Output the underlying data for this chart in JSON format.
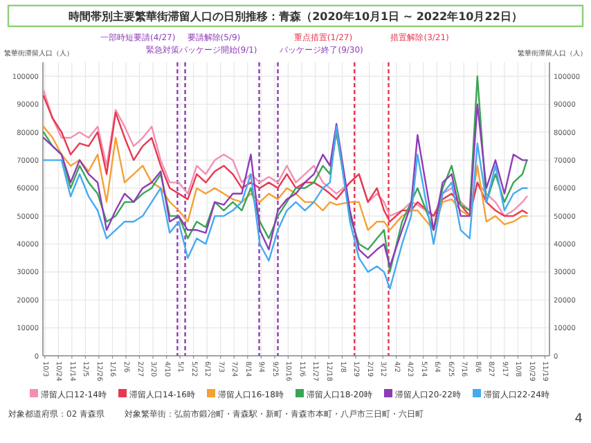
{
  "chart_data": {
    "type": "line",
    "title": "時間帯別主要繁華街滞留人口の日別推移：青森（2020年10月1日 ~ 2022年10月22日）",
    "ylabel": "繁華街滞留人口（人）",
    "y2label": "繁華街滞留人口（人）",
    "x": [
      "2020-10-01",
      "2020-10-15",
      "2020-10-29",
      "2020-11-12",
      "2020-11-26",
      "2020-12-10",
      "2020-12-24",
      "2021-01-07",
      "2021-01-21",
      "2021-02-04",
      "2021-02-18",
      "2021-03-04",
      "2021-03-18",
      "2021-04-01",
      "2021-04-15",
      "2021-04-29",
      "2021-05-13",
      "2021-05-27",
      "2021-06-10",
      "2021-06-24",
      "2021-07-08",
      "2021-07-22",
      "2021-08-05",
      "2021-08-19",
      "2021-09-02",
      "2021-09-16",
      "2021-09-30",
      "2021-10-14",
      "2021-10-28",
      "2021-11-11",
      "2021-11-25",
      "2021-12-09",
      "2021-12-20",
      "2021-12-30",
      "2022-01-20",
      "2022-02-03",
      "2022-02-17",
      "2022-03-03",
      "2022-03-14",
      "2022-03-23",
      "2022-04-11",
      "2022-04-25",
      "2022-05-05",
      "2022-05-30",
      "2022-06-13",
      "2022-06-27",
      "2022-07-11",
      "2022-07-25",
      "2022-08-06",
      "2022-08-20",
      "2022-09-03",
      "2022-09-17",
      "2022-10-01",
      "2022-10-15",
      "2022-10-22"
    ],
    "series": [
      {
        "name": "滞留人口12-14時",
        "color": "#f48fb1",
        "values": [
          95000,
          85000,
          78000,
          78000,
          80000,
          78000,
          82000,
          68000,
          88000,
          82000,
          75000,
          78000,
          82000,
          70000,
          62000,
          62000,
          58000,
          68000,
          65000,
          70000,
          72000,
          70000,
          62000,
          65000,
          62000,
          64000,
          62000,
          68000,
          62000,
          65000,
          68000,
          62000,
          60000,
          58000,
          62000,
          65000,
          55000,
          58000,
          55000,
          50000,
          52000,
          55000,
          54000,
          50000,
          58000,
          60000,
          55000,
          52000,
          62000,
          58000,
          55000,
          50000,
          52000,
          55000,
          57000
        ]
      },
      {
        "name": "滞留人口14-16時",
        "color": "#e8384f",
        "values": [
          93000,
          85000,
          80000,
          72000,
          76000,
          75000,
          80000,
          65000,
          87000,
          78000,
          70000,
          75000,
          78000,
          68000,
          60000,
          58000,
          56000,
          65000,
          62000,
          66000,
          68000,
          65000,
          60000,
          62000,
          60000,
          62000,
          60000,
          65000,
          60000,
          62000,
          62000,
          60000,
          58000,
          56000,
          62000,
          65000,
          55000,
          60000,
          52000,
          48000,
          52000,
          52000,
          55000,
          50000,
          56000,
          58000,
          54000,
          50000,
          62000,
          55000,
          52000,
          50000,
          50000,
          52000,
          51000
        ]
      },
      {
        "name": "滞留人口16-18時",
        "color": "#f5a033",
        "values": [
          82000,
          78000,
          72000,
          68000,
          70000,
          66000,
          72000,
          55000,
          78000,
          62000,
          65000,
          68000,
          62000,
          60000,
          55000,
          52000,
          48000,
          60000,
          58000,
          60000,
          58000,
          56000,
          55000,
          58000,
          55000,
          58000,
          56000,
          60000,
          58000,
          55000,
          55000,
          52000,
          55000,
          54000,
          55000,
          55000,
          45000,
          48000,
          48000,
          45000,
          50000,
          52000,
          52000,
          45000,
          55000,
          56000,
          52000,
          50000,
          68000,
          48000,
          50000,
          47000,
          48000,
          50000,
          50000
        ]
      },
      {
        "name": "滞留人口18-20時",
        "color": "#3aa555",
        "values": [
          80000,
          75000,
          72000,
          60000,
          68000,
          62000,
          58000,
          48000,
          50000,
          55000,
          55000,
          58000,
          60000,
          65000,
          50000,
          50000,
          42000,
          48000,
          46000,
          55000,
          52000,
          55000,
          52000,
          60000,
          48000,
          42000,
          50000,
          55000,
          60000,
          60000,
          62000,
          68000,
          65000,
          80000,
          50000,
          40000,
          38000,
          42000,
          45000,
          30000,
          48000,
          55000,
          60000,
          45000,
          60000,
          68000,
          54000,
          52000,
          100000,
          55000,
          65000,
          55000,
          62000,
          65000,
          70000
        ]
      },
      {
        "name": "滞留人口20-22時",
        "color": "#8e3cb5",
        "values": [
          78000,
          75000,
          72000,
          62000,
          70000,
          65000,
          62000,
          45000,
          52000,
          58000,
          55000,
          60000,
          62000,
          66000,
          48000,
          50000,
          45000,
          45000,
          44000,
          55000,
          54000,
          58000,
          58000,
          72000,
          45000,
          38000,
          52000,
          56000,
          58000,
          62000,
          65000,
          72000,
          68000,
          83000,
          52000,
          38000,
          35000,
          38000,
          40000,
          32000,
          45000,
          54000,
          79000,
          45000,
          62000,
          65000,
          50000,
          50000,
          90000,
          60000,
          70000,
          58000,
          72000,
          70000,
          70000
        ]
      },
      {
        "name": "滞留人口22-24時",
        "color": "#45aaf2",
        "values": [
          70000,
          70000,
          70000,
          57000,
          65000,
          57000,
          52000,
          42000,
          45000,
          48000,
          48000,
          50000,
          55000,
          60000,
          44000,
          48000,
          35000,
          42000,
          40000,
          50000,
          50000,
          52000,
          55000,
          65000,
          40000,
          34000,
          45000,
          52000,
          55000,
          52000,
          55000,
          60000,
          62000,
          82000,
          48000,
          35000,
          30000,
          32000,
          30000,
          24000,
          40000,
          50000,
          72000,
          40000,
          58000,
          62000,
          45000,
          42000,
          76000,
          55000,
          68000,
          52000,
          58000,
          60000,
          60000
        ]
      }
    ],
    "xlim": [
      "2020-09-30",
      "2022-11-26"
    ],
    "xticks": [
      {
        "value": "2020-10-03",
        "label": "10/3"
      },
      {
        "value": "2020-10-24",
        "label": "10/24"
      },
      {
        "value": "2020-11-14",
        "label": "11/14"
      },
      {
        "value": "2020-12-05",
        "label": "12/5"
      },
      {
        "value": "2020-12-26",
        "label": "12/26"
      },
      {
        "value": "2021-01-16",
        "label": "1/16"
      },
      {
        "value": "2021-02-06",
        "label": "2/6"
      },
      {
        "value": "2021-02-27",
        "label": "2/27"
      },
      {
        "value": "2021-03-20",
        "label": "3/20"
      },
      {
        "value": "2021-04-10",
        "label": "4/10"
      },
      {
        "value": "2021-05-01",
        "label": "5/1"
      },
      {
        "value": "2021-05-22",
        "label": "5/22"
      },
      {
        "value": "2021-06-12",
        "label": "6/12"
      },
      {
        "value": "2021-07-03",
        "label": "7/3"
      },
      {
        "value": "2021-07-24",
        "label": "7/24"
      },
      {
        "value": "2021-08-14",
        "label": "8/14"
      },
      {
        "value": "2021-09-04",
        "label": "9/4"
      },
      {
        "value": "2021-09-25",
        "label": "9/25"
      },
      {
        "value": "2021-10-16",
        "label": "10/16"
      },
      {
        "value": "2021-11-06",
        "label": "11/6"
      },
      {
        "value": "2021-11-27",
        "label": "11/27"
      },
      {
        "value": "2021-12-18",
        "label": "12/18"
      },
      {
        "value": "2022-01-08",
        "label": "1/8"
      },
      {
        "value": "2022-01-29",
        "label": "1/29"
      },
      {
        "value": "2022-02-19",
        "label": "2/19"
      },
      {
        "value": "2022-03-12",
        "label": "3/12"
      },
      {
        "value": "2022-04-02",
        "label": "4/2"
      },
      {
        "value": "2022-04-23",
        "label": "4/23"
      },
      {
        "value": "2022-05-14",
        "label": "5/14"
      },
      {
        "value": "2022-06-04",
        "label": "6/4"
      },
      {
        "value": "2022-06-25",
        "label": "6/25"
      },
      {
        "value": "2022-07-16",
        "label": "7/16"
      },
      {
        "value": "2022-08-06",
        "label": "8/6"
      },
      {
        "value": "2022-08-27",
        "label": "8/27"
      },
      {
        "value": "2022-09-17",
        "label": "9/17"
      },
      {
        "value": "2022-10-08",
        "label": "10/8"
      },
      {
        "value": "2022-10-29",
        "label": "10/29"
      },
      {
        "value": "2022-11-19",
        "label": "11/19"
      }
    ],
    "ylim": [
      0,
      105000
    ],
    "yticks": [
      0,
      10000,
      20000,
      30000,
      40000,
      50000,
      60000,
      70000,
      80000,
      90000,
      100000
    ],
    "y2lim": [
      0,
      105000
    ],
    "y2ticks": [
      0,
      10000,
      20000,
      30000,
      40000,
      50000,
      60000,
      70000,
      80000,
      90000,
      100000
    ],
    "ref_lines": [
      {
        "axis": "x",
        "value": "2021-04-27",
        "label": "一部時短要請(4/27)",
        "color": "#8e3cb5",
        "line_style": "dashed"
      },
      {
        "axis": "x",
        "value": "2021-05-09",
        "label": "要請解除(5/9)",
        "color": "#8e3cb5",
        "line_style": "dashed"
      },
      {
        "axis": "x",
        "value": "2021-09-01",
        "label": "緊急対策パッケージ開始(9/1)",
        "color": "#8e3cb5",
        "line_style": "dashed"
      },
      {
        "axis": "x",
        "value": "2021-09-30",
        "label": "パッケージ終了(9/30)",
        "color": "#8e3cb5",
        "line_style": "dashed"
      },
      {
        "axis": "x",
        "value": "2022-01-27",
        "label": "重点措置(1/27)",
        "color": "#e8384f",
        "line_style": "dashed"
      },
      {
        "axis": "x",
        "value": "2022-03-21",
        "label": "措置解除(3/21)",
        "color": "#e8384f",
        "line_style": "dashed"
      }
    ],
    "grid": true,
    "legend": "bottom",
    "line_style": "solid",
    "marker": "none",
    "annotations": [
      "対象都道府県：02 青森県",
      "対象繁華街：弘前市鍛冶町・青森駅・新町・青森市本町・八戸市三日町・六日町",
      "4"
    ]
  }
}
